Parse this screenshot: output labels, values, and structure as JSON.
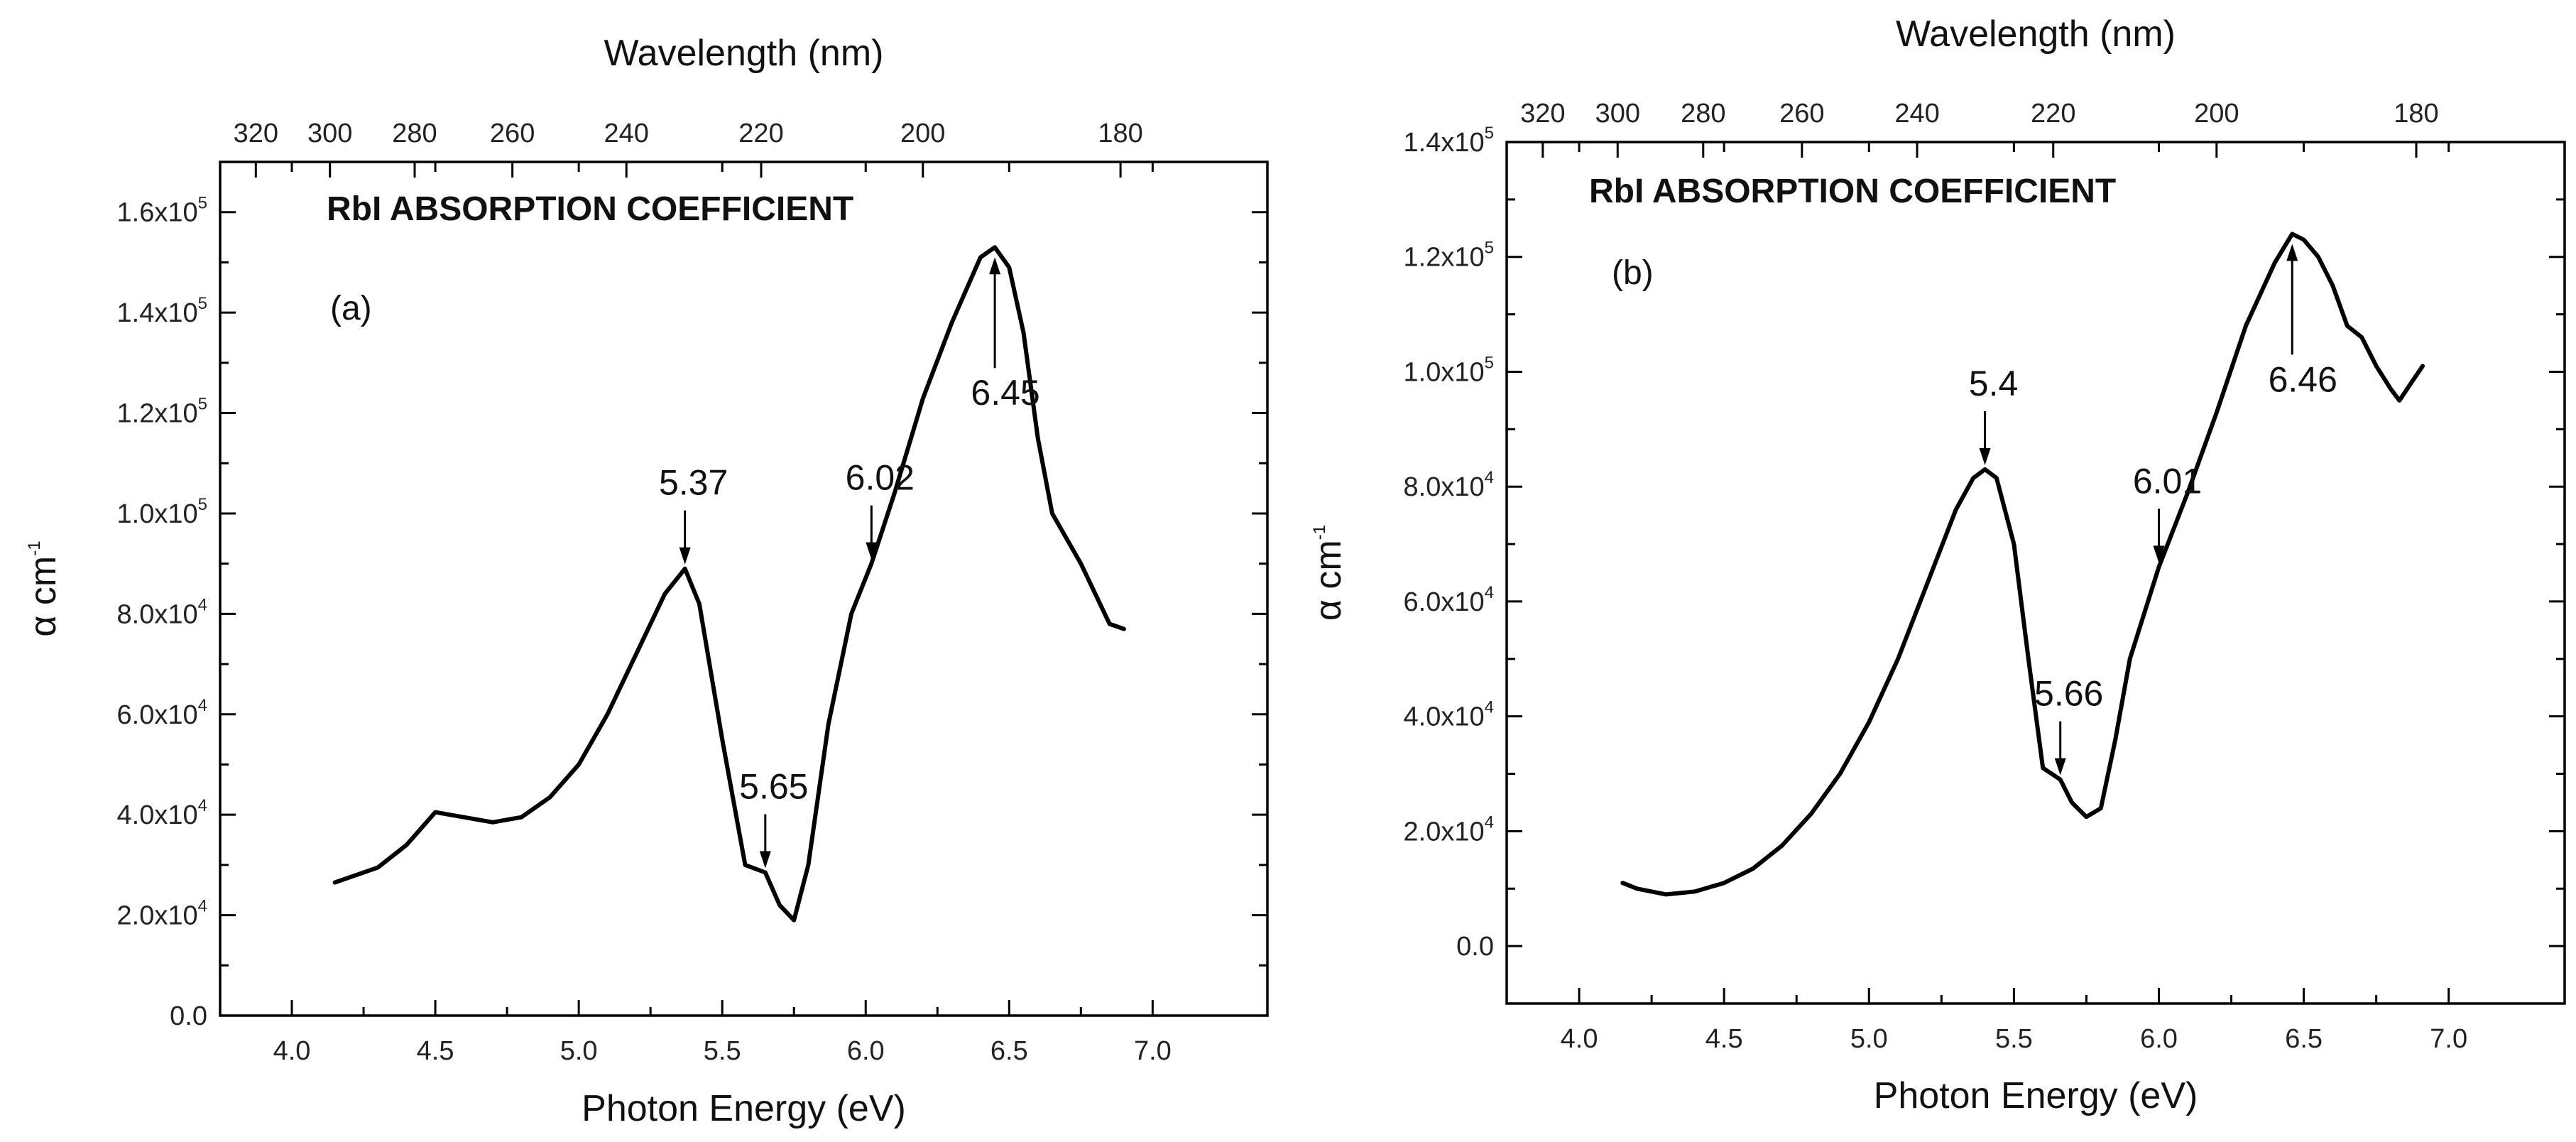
{
  "chart_data": [
    {
      "type": "line",
      "panel_label": "(a)",
      "title": "RbI ABSORPTION COEFFICIENT",
      "xlabel": "Photon Energy (eV)",
      "ylabel": "α cm-1",
      "top_xlabel": "Wavelength (nm)",
      "xlim": [
        3.75,
        7.4
      ],
      "ylim": [
        0,
        170000
      ],
      "x_ticks": [
        "4.0",
        "4.5",
        "5.0",
        "5.5",
        "6.0",
        "6.5",
        "7.0"
      ],
      "y_ticks": [
        {
          "value": 0,
          "mantissa": "0.0",
          "exp": ""
        },
        {
          "value": 20000,
          "mantissa": "2.0x10",
          "exp": "4"
        },
        {
          "value": 40000,
          "mantissa": "4.0x10",
          "exp": "4"
        },
        {
          "value": 60000,
          "mantissa": "6.0x10",
          "exp": "4"
        },
        {
          "value": 80000,
          "mantissa": "8.0x10",
          "exp": "4"
        },
        {
          "value": 100000,
          "mantissa": "1.0x10",
          "exp": "5"
        },
        {
          "value": 120000,
          "mantissa": "1.2x10",
          "exp": "5"
        },
        {
          "value": 140000,
          "mantissa": "1.4x10",
          "exp": "5"
        },
        {
          "value": 160000,
          "mantissa": "1.6x10",
          "exp": "5"
        }
      ],
      "top_ticks": [
        "320",
        "300",
        "280",
        "260",
        "240",
        "220",
        "200",
        "180"
      ],
      "series": [
        {
          "name": "RbI absorption coefficient",
          "x": [
            4.15,
            4.2,
            4.3,
            4.4,
            4.5,
            4.55,
            4.6,
            4.7,
            4.8,
            4.9,
            5.0,
            5.1,
            5.2,
            5.3,
            5.37,
            5.42,
            5.5,
            5.58,
            5.65,
            5.7,
            5.75,
            5.8,
            5.87,
            5.95,
            6.02,
            6.1,
            6.2,
            6.3,
            6.4,
            6.45,
            6.5,
            6.55,
            6.6,
            6.65,
            6.7,
            6.75,
            6.8,
            6.85,
            6.9
          ],
          "y": [
            26500,
            27500,
            29500,
            34000,
            40500,
            40000,
            39500,
            38500,
            39500,
            43500,
            50000,
            60000,
            72000,
            84000,
            89000,
            82000,
            55000,
            30000,
            28500,
            22000,
            19000,
            30000,
            58000,
            80000,
            90000,
            104000,
            123000,
            138000,
            151000,
            153000,
            149000,
            136000,
            115000,
            100000,
            95000,
            90000,
            84000,
            78000,
            77000
          ]
        }
      ],
      "annotations": [
        {
          "label": "5.37",
          "x": 5.37,
          "y": 89000,
          "direction": "down"
        },
        {
          "label": "5.65",
          "x": 5.65,
          "y": 28500,
          "direction": "down"
        },
        {
          "label": "6.02",
          "x": 6.02,
          "y": 90000,
          "direction": "down"
        },
        {
          "label": "6.45",
          "x": 6.45,
          "y": 153000,
          "direction": "up"
        }
      ]
    },
    {
      "type": "line",
      "panel_label": "(b)",
      "title": "RbI ABSORPTION COEFFICIENT",
      "xlabel": "Photon Energy (eV)",
      "ylabel": "α cm-1",
      "top_xlabel": "Wavelength (nm)",
      "xlim": [
        3.75,
        7.4
      ],
      "ylim": [
        -10000,
        140000
      ],
      "x_ticks": [
        "4.0",
        "4.5",
        "5.0",
        "5.5",
        "6.0",
        "6.5",
        "7.0"
      ],
      "y_ticks": [
        {
          "value": 0,
          "mantissa": "0.0",
          "exp": ""
        },
        {
          "value": 20000,
          "mantissa": "2.0x10",
          "exp": "4"
        },
        {
          "value": 40000,
          "mantissa": "4.0x10",
          "exp": "4"
        },
        {
          "value": 60000,
          "mantissa": "6.0x10",
          "exp": "4"
        },
        {
          "value": 80000,
          "mantissa": "8.0x10",
          "exp": "4"
        },
        {
          "value": 100000,
          "mantissa": "1.0x10",
          "exp": "5"
        },
        {
          "value": 120000,
          "mantissa": "1.2x10",
          "exp": "5"
        },
        {
          "value": 140000,
          "mantissa": "1.4x10",
          "exp": "5"
        }
      ],
      "top_ticks": [
        "320",
        "300",
        "280",
        "260",
        "240",
        "220",
        "200",
        "180"
      ],
      "series": [
        {
          "name": "RbI absorption coefficient",
          "x": [
            4.15,
            4.2,
            4.3,
            4.4,
            4.5,
            4.6,
            4.7,
            4.8,
            4.9,
            5.0,
            5.1,
            5.2,
            5.3,
            5.36,
            5.4,
            5.44,
            5.5,
            5.55,
            5.6,
            5.66,
            5.7,
            5.75,
            5.8,
            5.85,
            5.9,
            6.0,
            6.1,
            6.2,
            6.3,
            6.4,
            6.46,
            6.5,
            6.55,
            6.6,
            6.65,
            6.7,
            6.75,
            6.8,
            6.83,
            6.87,
            6.91
          ],
          "y": [
            11000,
            10000,
            9000,
            9500,
            11000,
            13500,
            17500,
            23000,
            30000,
            39000,
            50000,
            63000,
            76000,
            81500,
            83000,
            81500,
            70000,
            50000,
            31000,
            29000,
            25000,
            22500,
            24000,
            36000,
            50000,
            66000,
            79000,
            93000,
            108000,
            119000,
            124000,
            123000,
            120000,
            115000,
            108000,
            106000,
            101000,
            97000,
            95000,
            98000,
            101000
          ]
        }
      ],
      "annotations": [
        {
          "label": "5.4",
          "x": 5.4,
          "y": 83000,
          "direction": "down"
        },
        {
          "label": "5.66",
          "x": 5.66,
          "y": 29000,
          "direction": "down"
        },
        {
          "label": "6.01",
          "x": 6.0,
          "y": 66000,
          "direction": "down"
        },
        {
          "label": "6.46",
          "x": 6.46,
          "y": 124000,
          "direction": "up"
        }
      ]
    }
  ]
}
